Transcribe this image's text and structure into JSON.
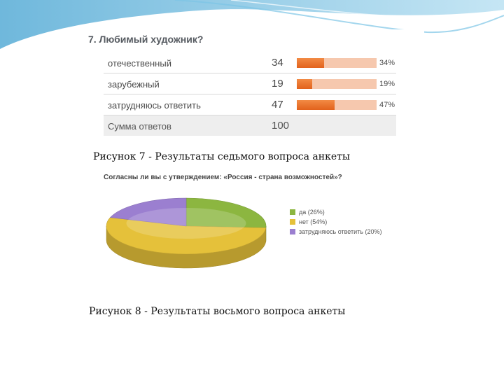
{
  "slide": {
    "caption_7": "Рисунок 7 - Результаты седьмого вопроса анкеты",
    "caption_8": "Рисунок 8 - Результаты восьмого вопроса анкеты"
  },
  "chart_data": [
    {
      "type": "table",
      "title": "7. Любимый художник?",
      "columns": [
        "answer",
        "count",
        "percent"
      ],
      "rows": [
        {
          "label": "отечественный",
          "count": "34",
          "percent": 34,
          "percent_label": "34%"
        },
        {
          "label": "зарубежный",
          "count": "19",
          "percent": 19,
          "percent_label": "19%"
        },
        {
          "label": "затрудняюсь ответить",
          "count": "47",
          "percent": 47,
          "percent_label": "47%"
        }
      ],
      "total": {
        "label": "Сумма ответов",
        "count": "100"
      },
      "colors": {
        "bar_fill": "#ee7a34",
        "bar_track": "#f6c8ae"
      }
    },
    {
      "type": "pie",
      "title": "Согласны ли вы с утверждением: «Россия - страна возможностей»?",
      "categories": [
        "да",
        "нет",
        "затрудняюсь ответить"
      ],
      "values": [
        26,
        54,
        20
      ],
      "legend_labels": [
        "да (26%)",
        "нет (54%)",
        "затрудняюсь ответить (20%)"
      ],
      "colors": [
        "#8cb640",
        "#e5c13a",
        "#9b7fd0"
      ],
      "legend_position": "right"
    }
  ]
}
